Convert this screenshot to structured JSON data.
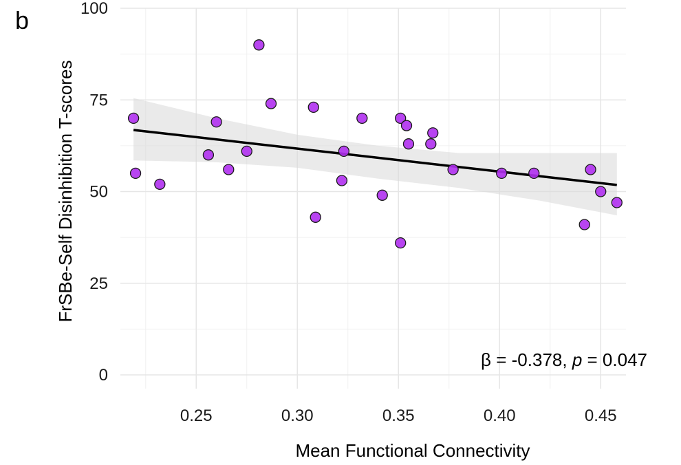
{
  "panel_label": "b",
  "annotation": {
    "beta_symbol": "β",
    "beta_text": " = -0.378, ",
    "p_symbol": "p",
    "p_text": " = 0.047"
  },
  "colors": {
    "point_fill": "#b030f0",
    "point_stroke": "#1a1a1a",
    "line": "#000000",
    "band": "#d9d9d9"
  },
  "chart_data": {
    "type": "scatter",
    "xlabel": "Mean Functional Connectivity",
    "ylabel": "FrSBe-Self Disinhibition T-scores",
    "xlim": [
      0.2125,
      0.4625
    ],
    "ylim": [
      0,
      100
    ],
    "xticks": [
      0.25,
      0.3,
      0.35,
      0.4,
      0.45
    ],
    "xtick_labels": [
      "0.25",
      "0.30",
      "0.35",
      "0.40",
      "0.45"
    ],
    "yticks": [
      0,
      25,
      50,
      75,
      100
    ],
    "ytick_labels": [
      "0",
      "25",
      "50",
      "75",
      "100"
    ],
    "grid": true,
    "points": [
      {
        "x": 0.219,
        "y": 70
      },
      {
        "x": 0.22,
        "y": 55
      },
      {
        "x": 0.232,
        "y": 52
      },
      {
        "x": 0.256,
        "y": 60
      },
      {
        "x": 0.26,
        "y": 69
      },
      {
        "x": 0.266,
        "y": 56
      },
      {
        "x": 0.275,
        "y": 61
      },
      {
        "x": 0.281,
        "y": 90
      },
      {
        "x": 0.287,
        "y": 74
      },
      {
        "x": 0.308,
        "y": 73
      },
      {
        "x": 0.309,
        "y": 43
      },
      {
        "x": 0.322,
        "y": 53
      },
      {
        "x": 0.323,
        "y": 61
      },
      {
        "x": 0.332,
        "y": 70
      },
      {
        "x": 0.342,
        "y": 49
      },
      {
        "x": 0.351,
        "y": 70
      },
      {
        "x": 0.351,
        "y": 36
      },
      {
        "x": 0.354,
        "y": 68
      },
      {
        "x": 0.355,
        "y": 63
      },
      {
        "x": 0.366,
        "y": 63
      },
      {
        "x": 0.367,
        "y": 66
      },
      {
        "x": 0.377,
        "y": 56
      },
      {
        "x": 0.401,
        "y": 55
      },
      {
        "x": 0.417,
        "y": 55
      },
      {
        "x": 0.442,
        "y": 41
      },
      {
        "x": 0.445,
        "y": 56
      },
      {
        "x": 0.45,
        "y": 50
      },
      {
        "x": 0.458,
        "y": 47
      }
    ],
    "fit_line": {
      "x": [
        0.219,
        0.458
      ],
      "y": [
        66.8,
        51.8
      ]
    },
    "confidence_band": {
      "x": [
        0.219,
        0.26,
        0.3,
        0.34,
        0.38,
        0.42,
        0.458
      ],
      "lower": [
        58.5,
        58.0,
        56.5,
        53.5,
        51.0,
        47.5,
        43.5
      ],
      "upper": [
        75.5,
        70.0,
        65.5,
        62.5,
        60.5,
        60.5,
        60.5
      ]
    }
  }
}
